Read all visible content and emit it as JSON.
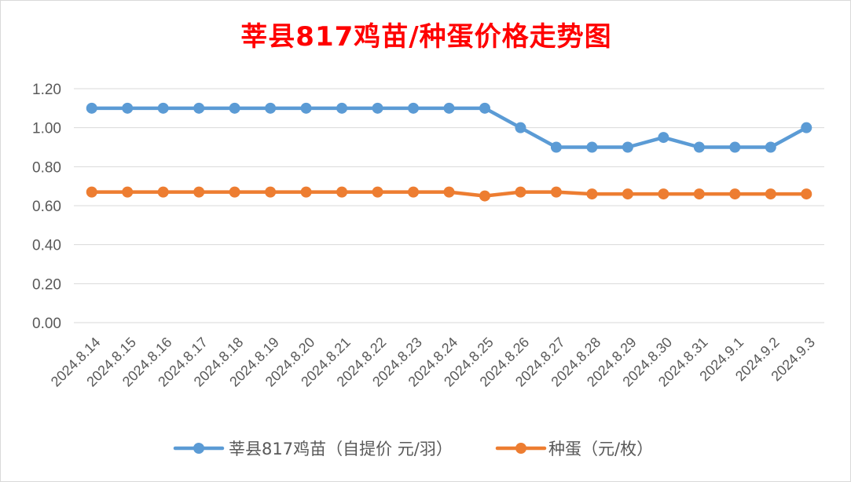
{
  "chart_data": {
    "type": "line",
    "title": "莘县817鸡苗/种蛋价格走势图",
    "title_color": "#ff0000",
    "xlabel": "",
    "ylabel": "",
    "ylim": [
      0,
      1.2
    ],
    "y_ticks": [
      "0.00",
      "0.20",
      "0.40",
      "0.60",
      "0.80",
      "1.00",
      "1.20"
    ],
    "grid": true,
    "legend_position": "bottom",
    "categories": [
      "2024.8.14",
      "2024.8.15",
      "2024.8.16",
      "2024.8.17",
      "2024.8.18",
      "2024.8.19",
      "2024.8.20",
      "2024.8.21",
      "2024.8.22",
      "2024.8.23",
      "2024.8.24",
      "2024.8.25",
      "2024.8.26",
      "2024.8.27",
      "2024.8.28",
      "2024.8.29",
      "2024.8.30",
      "2024.8.31",
      "2024.9.1",
      "2024.9.2",
      "2024.9.3"
    ],
    "series": [
      {
        "name": "莘县817鸡苗（自提价 元/羽）",
        "color": "#5b9bd5",
        "values": [
          1.1,
          1.1,
          1.1,
          1.1,
          1.1,
          1.1,
          1.1,
          1.1,
          1.1,
          1.1,
          1.1,
          1.1,
          1.0,
          0.9,
          0.9,
          0.9,
          0.95,
          0.9,
          0.9,
          0.9,
          1.0
        ]
      },
      {
        "name": "种蛋（元/枚）",
        "color": "#ed7d31",
        "values": [
          0.67,
          0.67,
          0.67,
          0.67,
          0.67,
          0.67,
          0.67,
          0.67,
          0.67,
          0.67,
          0.67,
          0.65,
          0.67,
          0.67,
          0.66,
          0.66,
          0.66,
          0.66,
          0.66,
          0.66,
          0.66
        ]
      }
    ]
  }
}
